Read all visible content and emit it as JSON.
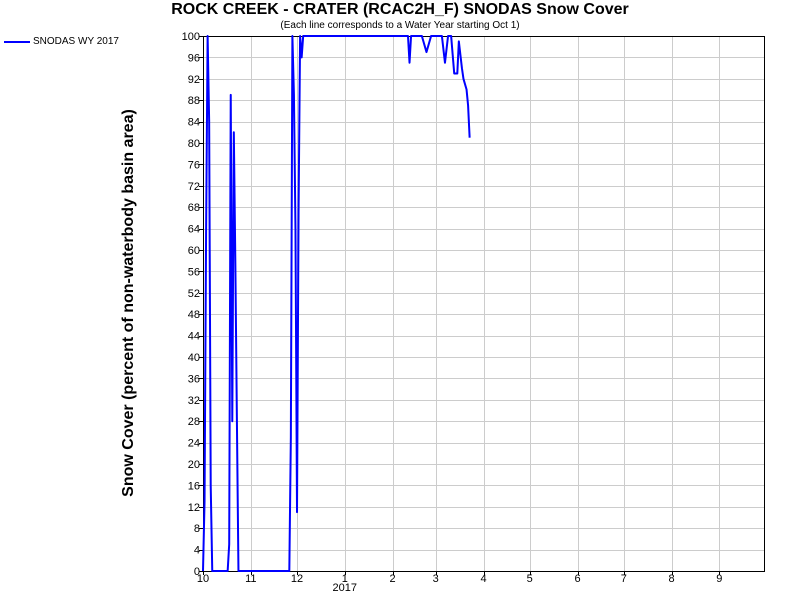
{
  "chart_data": {
    "type": "line",
    "title": "ROCK CREEK - CRATER (RCAC2H_F) SNODAS Snow Cover",
    "subtitle": "(Each line corresponds to a Water Year starting Oct 1)",
    "ylabel": "Snow Cover (percent of non-waterbody basin area)",
    "xlabel": "",
    "ylim": [
      0,
      100
    ],
    "xlim": [
      "2016-10-01",
      "2017-09-30"
    ],
    "grid": true,
    "legend_position": "top-left",
    "y_ticks": [
      0,
      4,
      8,
      12,
      16,
      20,
      24,
      28,
      32,
      36,
      40,
      44,
      48,
      52,
      56,
      60,
      64,
      68,
      72,
      76,
      80,
      84,
      88,
      92,
      96,
      100
    ],
    "x_ticks": [
      {
        "date": "2016-10-01",
        "label": "10"
      },
      {
        "date": "2016-11-01",
        "label": "11"
      },
      {
        "date": "2016-12-01",
        "label": "12"
      },
      {
        "date": "2017-01-01",
        "label": "1"
      },
      {
        "date": "2017-02-01",
        "label": "2"
      },
      {
        "date": "2017-03-01",
        "label": "3"
      },
      {
        "date": "2017-04-01",
        "label": "4"
      },
      {
        "date": "2017-05-01",
        "label": "5"
      },
      {
        "date": "2017-06-01",
        "label": "6"
      },
      {
        "date": "2017-07-01",
        "label": "7"
      },
      {
        "date": "2017-08-01",
        "label": "8"
      },
      {
        "date": "2017-09-01",
        "label": "9"
      }
    ],
    "year_label": {
      "date": "2017-01-01",
      "label": "2017"
    },
    "series": [
      {
        "name": "SNODAS WY 2017",
        "color": "#0000ff",
        "points": [
          [
            "2016-10-01",
            0
          ],
          [
            "2016-10-02",
            13
          ],
          [
            "2016-10-03",
            63
          ],
          [
            "2016-10-04",
            100
          ],
          [
            "2016-10-05",
            84
          ],
          [
            "2016-10-06",
            16
          ],
          [
            "2016-10-07",
            0
          ],
          [
            "2016-10-17",
            0
          ],
          [
            "2016-10-18",
            5
          ],
          [
            "2016-10-19",
            89
          ],
          [
            "2016-10-20",
            28
          ],
          [
            "2016-10-21",
            82
          ],
          [
            "2016-10-22",
            57
          ],
          [
            "2016-10-23",
            28
          ],
          [
            "2016-10-24",
            0
          ],
          [
            "2016-11-01",
            0
          ],
          [
            "2016-11-26",
            0
          ],
          [
            "2016-11-27",
            25
          ],
          [
            "2016-11-28",
            100
          ],
          [
            "2016-11-29",
            89
          ],
          [
            "2016-11-30",
            64
          ],
          [
            "2016-12-01",
            11
          ],
          [
            "2016-12-02",
            67
          ],
          [
            "2016-12-03",
            100
          ],
          [
            "2016-12-04",
            96
          ],
          [
            "2016-12-05",
            100
          ],
          [
            "2017-02-11",
            100
          ],
          [
            "2017-02-12",
            95
          ],
          [
            "2017-02-13",
            100
          ],
          [
            "2017-02-20",
            100
          ],
          [
            "2017-02-23",
            97
          ],
          [
            "2017-02-26",
            100
          ],
          [
            "2017-03-05",
            100
          ],
          [
            "2017-03-07",
            95
          ],
          [
            "2017-03-09",
            100
          ],
          [
            "2017-03-11",
            100
          ],
          [
            "2017-03-13",
            93
          ],
          [
            "2017-03-15",
            93
          ],
          [
            "2017-03-16",
            99
          ],
          [
            "2017-03-18",
            94
          ],
          [
            "2017-03-19",
            92
          ],
          [
            "2017-03-21",
            90
          ],
          [
            "2017-03-22",
            87
          ],
          [
            "2017-03-23",
            81
          ]
        ]
      }
    ]
  }
}
